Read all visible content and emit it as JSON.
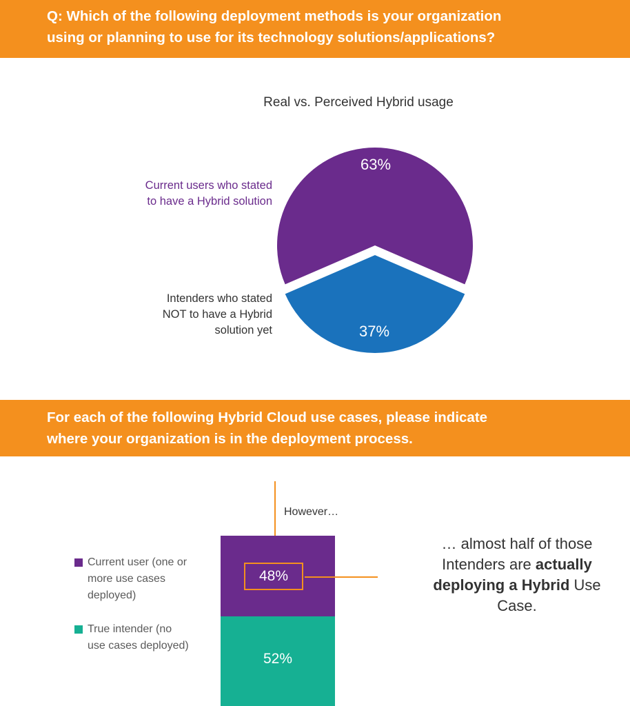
{
  "banner1": {
    "line1": "Q: Which of the following deployment methods is your organization",
    "line2": "using or planning to use for its technology solutions/applications?"
  },
  "banner2": {
    "line1": "For each of the following Hybrid Cloud use cases, please indicate",
    "line2": "where your organization is in the deployment process."
  },
  "colors": {
    "banner": "#f4901e",
    "current": "#6a2b8c",
    "intenders": "#1a72bc",
    "true_intender": "#16b093"
  },
  "chart_data": [
    {
      "type": "pie",
      "title": "Real vs. Perceived Hybrid  usage",
      "slices": [
        {
          "label_lines": [
            "Current  users who stated",
            "to have a Hybrid solution"
          ],
          "value": 63,
          "value_label": "63%",
          "color": "#6a2b8c"
        },
        {
          "label_lines": [
            "Intenders who stated",
            "NOT to have a Hybrid",
            "solution  yet"
          ],
          "value": 37,
          "value_label": "37%",
          "color": "#1a72bc"
        }
      ]
    },
    {
      "type": "bar",
      "stacked": true,
      "annotation_top": "However…",
      "series": [
        {
          "name": "Current user (one or more use cases deployed)",
          "legend_lines": [
            "Current user (one or",
            "more use cases",
            "deployed)"
          ],
          "value": 48,
          "value_label": "48%",
          "color": "#6a2b8c"
        },
        {
          "name": "True intender (no use cases deployed)",
          "legend_lines": [
            "True intender (no",
            "use cases deployed)"
          ],
          "value": 52,
          "value_label": "52%",
          "color": "#16b093"
        }
      ]
    }
  ],
  "callout": {
    "part1": "… almost  half of those Intenders are ",
    "bold": "actually deploying  a Hybrid",
    "part2": " Use Case."
  }
}
